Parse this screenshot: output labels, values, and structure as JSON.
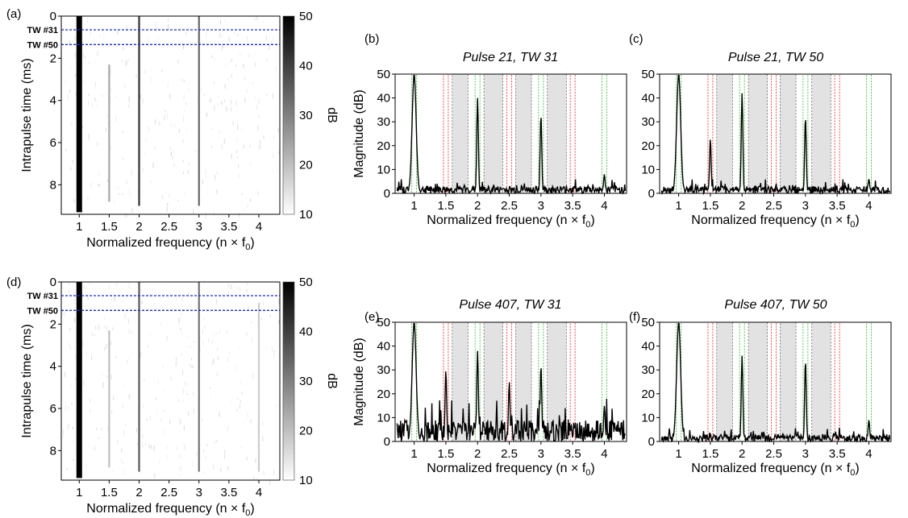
{
  "chart_data": [
    {
      "id": "a",
      "type": "heatmap",
      "panel_label": "(a)",
      "xlabel": "Normalized frequency (n × f",
      "xlabel_sub": "0",
      "xlabel_tail": ")",
      "ylabel": "Intrapulse time (ms)",
      "xlim": [
        0.7,
        4.35
      ],
      "ylim": [
        0,
        9.4
      ],
      "xticks": [
        1,
        1.5,
        2,
        2.5,
        3,
        3.5,
        4
      ],
      "xtick_labels": [
        "1",
        "1.5",
        "2",
        "2.5",
        "3",
        "3.5",
        "4"
      ],
      "yticks": [
        0,
        2,
        4,
        6,
        8
      ],
      "ytick_labels": [
        "0",
        "2",
        "4",
        "6",
        "8"
      ],
      "colorbar": {
        "label": "dB",
        "ticks": [
          50,
          40,
          30,
          20,
          10
        ],
        "tick_labels": [
          "50",
          "40",
          "30",
          "20",
          "10"
        ],
        "range": [
          10,
          50
        ]
      },
      "window_lines": [
        {
          "label": "TW #31",
          "y": 0.65
        },
        {
          "label": "TW #50",
          "y": 1.35
        }
      ],
      "harmonic_streaks": [
        {
          "x": 1,
          "db": 50,
          "y_start": 0,
          "y_end": 9.3
        },
        {
          "x": 1.5,
          "db": 24,
          "y_start": 2.3,
          "y_end": 8.8
        },
        {
          "x": 2,
          "db": 42,
          "y_start": 0,
          "y_end": 9.0
        },
        {
          "x": 3,
          "db": 34,
          "y_start": 0,
          "y_end": 9.0
        }
      ]
    },
    {
      "id": "b",
      "type": "line",
      "panel_label": "(b)",
      "title": "Pulse 21, TW 31",
      "xlabel": "Normalized frequency (n × f",
      "xlabel_sub": "0",
      "xlabel_tail": ")",
      "ylabel": "Magnitude (dB)",
      "xlim": [
        0.7,
        4.35
      ],
      "ylim": [
        0,
        50
      ],
      "xticks": [
        1,
        1.5,
        2,
        2.5,
        3,
        3.5,
        4
      ],
      "xtick_labels": [
        "1",
        "1.5",
        "2",
        "2.5",
        "3",
        "3.5",
        "4"
      ],
      "yticks": [
        0,
        10,
        20,
        30,
        40,
        50
      ],
      "ytick_labels": [
        "0",
        "10",
        "20",
        "30",
        "40",
        "50"
      ],
      "peaks": [
        {
          "x": 1,
          "y": 50
        },
        {
          "x": 2,
          "y": 40
        },
        {
          "x": 3,
          "y": 33
        },
        {
          "x": 4,
          "y": 8
        }
      ],
      "noise_floor": 3,
      "red_lines": [
        1.5,
        2.5,
        3.5
      ],
      "green_lines": [
        1,
        2,
        3,
        4
      ],
      "shaded_bands": [
        [
          1.6,
          1.85
        ],
        [
          2.1,
          2.4
        ],
        [
          2.6,
          2.85
        ],
        [
          3.1,
          3.4
        ]
      ]
    },
    {
      "id": "c",
      "type": "line",
      "panel_label": "(c)",
      "title": "Pulse 21, TW 50",
      "xlabel": "Normalized frequency (n × f",
      "xlabel_sub": "0",
      "xlabel_tail": ")",
      "ylabel": "",
      "xlim": [
        0.7,
        4.35
      ],
      "ylim": [
        0,
        50
      ],
      "xticks": [
        1,
        1.5,
        2,
        2.5,
        3,
        3.5,
        4
      ],
      "xtick_labels": [
        "1",
        "1.5",
        "2",
        "2.5",
        "3",
        "3.5",
        "4"
      ],
      "yticks": [
        0,
        10,
        20,
        30,
        40,
        50
      ],
      "ytick_labels": [
        "0",
        "10",
        "20",
        "30",
        "40",
        "50"
      ],
      "peaks": [
        {
          "x": 1,
          "y": 50
        },
        {
          "x": 1.5,
          "y": 23
        },
        {
          "x": 2,
          "y": 42
        },
        {
          "x": 3,
          "y": 32
        },
        {
          "x": 4,
          "y": 6
        }
      ],
      "noise_floor": 3,
      "red_lines": [
        1.5,
        2.5,
        3.5
      ],
      "green_lines": [
        1,
        2,
        3,
        4
      ],
      "shaded_bands": [
        [
          1.6,
          1.85
        ],
        [
          2.1,
          2.4
        ],
        [
          2.6,
          2.85
        ],
        [
          3.1,
          3.4
        ]
      ]
    },
    {
      "id": "d",
      "type": "heatmap",
      "panel_label": "(d)",
      "xlabel": "Normalized frequency (n × f",
      "xlabel_sub": "0",
      "xlabel_tail": ")",
      "ylabel": "Intrapulse time (ms)",
      "xlim": [
        0.7,
        4.35
      ],
      "ylim": [
        0,
        9.4
      ],
      "xticks": [
        1,
        1.5,
        2,
        2.5,
        3,
        3.5,
        4
      ],
      "xtick_labels": [
        "1",
        "1.5",
        "2",
        "2.5",
        "3",
        "3.5",
        "4"
      ],
      "yticks": [
        0,
        2,
        4,
        6,
        8
      ],
      "ytick_labels": [
        "0",
        "2",
        "4",
        "6",
        "8"
      ],
      "colorbar": {
        "label": "dB",
        "ticks": [
          50,
          40,
          30,
          20,
          10
        ],
        "tick_labels": [
          "50",
          "40",
          "30",
          "20",
          "10"
        ],
        "range": [
          10,
          50
        ]
      },
      "window_lines": [
        {
          "label": "TW #31",
          "y": 0.65
        },
        {
          "label": "TW #50",
          "y": 1.35
        }
      ],
      "harmonic_streaks": [
        {
          "x": 1,
          "db": 50,
          "y_start": 0,
          "y_end": 9.3
        },
        {
          "x": 1.5,
          "db": 20,
          "y_start": 2.3,
          "y_end": 8.8
        },
        {
          "x": 2,
          "db": 36,
          "y_start": 0,
          "y_end": 9.0
        },
        {
          "x": 3,
          "db": 32,
          "y_start": 0,
          "y_end": 9.0
        },
        {
          "x": 4,
          "db": 18,
          "y_start": 1.0,
          "y_end": 9.0
        }
      ]
    },
    {
      "id": "e",
      "type": "line",
      "panel_label": "(e)",
      "title": "Pulse 407, TW 31",
      "xlabel": "Normalized frequency (n × f",
      "xlabel_sub": "0",
      "xlabel_tail": ")",
      "ylabel": "Magnitude (dB)",
      "xlim": [
        0.7,
        4.35
      ],
      "ylim": [
        0,
        50
      ],
      "xticks": [
        1,
        1.5,
        2,
        2.5,
        3,
        3.5,
        4
      ],
      "xtick_labels": [
        "1",
        "1.5",
        "2",
        "2.5",
        "3",
        "3.5",
        "4"
      ],
      "yticks": [
        0,
        10,
        20,
        30,
        40,
        50
      ],
      "ytick_labels": [
        "0",
        "10",
        "20",
        "30",
        "40",
        "50"
      ],
      "peaks": [
        {
          "x": 1,
          "y": 50
        },
        {
          "x": 1.5,
          "y": 30
        },
        {
          "x": 2,
          "y": 38
        },
        {
          "x": 2.5,
          "y": 25
        },
        {
          "x": 3,
          "y": 32
        },
        {
          "x": 4,
          "y": 15
        }
      ],
      "noise_floor": 9,
      "red_lines": [
        1.5,
        2.5,
        3.5
      ],
      "green_lines": [
        1,
        2,
        3,
        4
      ],
      "shaded_bands": [
        [
          1.6,
          1.85
        ],
        [
          2.1,
          2.4
        ],
        [
          2.6,
          2.85
        ],
        [
          3.1,
          3.4
        ]
      ]
    },
    {
      "id": "f",
      "type": "line",
      "panel_label": "(f)",
      "title": "Pulse 407, TW 50",
      "xlabel": "Normalized frequency (n × f",
      "xlabel_sub": "0",
      "xlabel_tail": ")",
      "ylabel": "",
      "xlim": [
        0.7,
        4.35
      ],
      "ylim": [
        0,
        50
      ],
      "xticks": [
        1,
        1.5,
        2,
        2.5,
        3,
        3.5,
        4
      ],
      "xtick_labels": [
        "1",
        "1.5",
        "2",
        "2.5",
        "3",
        "3.5",
        "4"
      ],
      "yticks": [
        0,
        10,
        20,
        30,
        40,
        50
      ],
      "ytick_labels": [
        "0",
        "10",
        "20",
        "30",
        "40",
        "50"
      ],
      "peaks": [
        {
          "x": 1,
          "y": 50
        },
        {
          "x": 2,
          "y": 36
        },
        {
          "x": 3,
          "y": 34
        },
        {
          "x": 4,
          "y": 9
        }
      ],
      "noise_floor": 3,
      "red_lines": [
        1.5,
        2.5,
        3.5
      ],
      "green_lines": [
        1,
        2,
        3,
        4
      ],
      "shaded_bands": [
        [
          1.6,
          1.85
        ],
        [
          2.1,
          2.4
        ],
        [
          2.6,
          2.85
        ],
        [
          3.1,
          3.4
        ]
      ]
    }
  ],
  "colors": {
    "trace": "#000000",
    "red_marker": "#ff4d4d",
    "green_marker": "#5cc85c",
    "band_fill": "#e2e2e2",
    "band_edge": "#555555",
    "window_line": "#1a2ad6"
  }
}
